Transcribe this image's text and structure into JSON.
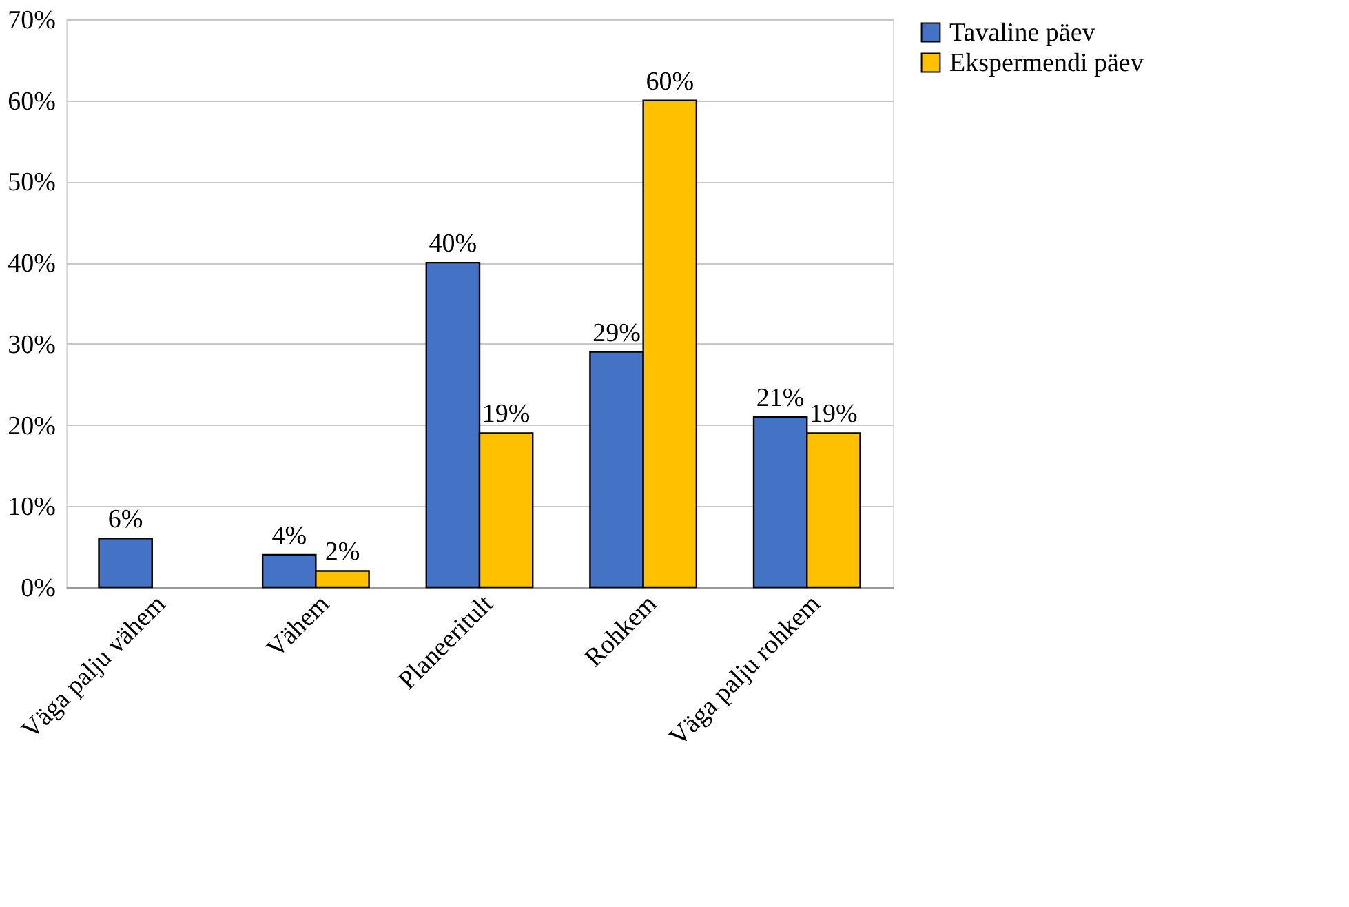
{
  "chart_data": {
    "type": "bar",
    "categories": [
      "Väga palju vähem",
      "Vähem",
      "Planeeritult",
      "Rohkem",
      "Väga palju rohkem"
    ],
    "series": [
      {
        "name": "Tavaline päev",
        "color": "#4472c4",
        "values": [
          6,
          4,
          40,
          29,
          21
        ],
        "value_labels": [
          "6%",
          "4%",
          "40%",
          "29%",
          "21%"
        ]
      },
      {
        "name": "Ekspermendi päev",
        "color": "#ffc000",
        "values": [
          null,
          2,
          19,
          60,
          19
        ],
        "value_labels": [
          null,
          "2%",
          "19%",
          "60%",
          "19%"
        ]
      }
    ],
    "ylim": [
      0,
      70
    ],
    "yticks": [
      {
        "value": 0,
        "label": "0%"
      },
      {
        "value": 10,
        "label": "10%"
      },
      {
        "value": 20,
        "label": "20%"
      },
      {
        "value": 30,
        "label": "30%"
      },
      {
        "value": 40,
        "label": "40%"
      },
      {
        "value": 50,
        "label": "50%"
      },
      {
        "value": 60,
        "label": "60%"
      },
      {
        "value": 70,
        "label": "70%"
      }
    ],
    "grid": "y",
    "legend": "right"
  }
}
